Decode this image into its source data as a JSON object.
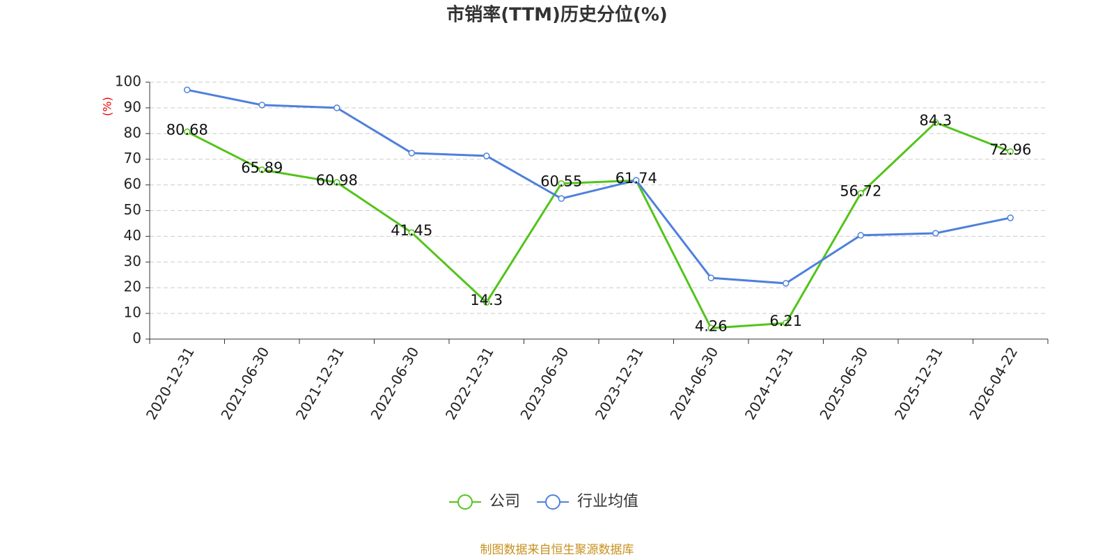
{
  "chart_data": {
    "type": "line",
    "title": "市销率(TTM)历史分位(%)",
    "y_label": "(%)",
    "categories": [
      "2020-12-31",
      "2021-06-30",
      "2021-12-31",
      "2022-06-30",
      "2022-12-31",
      "2023-06-30",
      "2023-12-31",
      "2024-06-30",
      "2024-12-31",
      "2025-06-30",
      "2025-12-31",
      "2026-04-22"
    ],
    "series": [
      {
        "name": "公司",
        "color": "#52c41a",
        "values": [
          80.68,
          65.89,
          60.98,
          41.45,
          14.3,
          60.55,
          61.74,
          4.26,
          6.21,
          56.72,
          84.3,
          72.96
        ]
      },
      {
        "name": "行业均值",
        "color": "#4e80dc",
        "values": [
          97.0,
          91.1,
          90.0,
          72.4,
          71.3,
          54.7,
          61.8,
          23.8,
          21.7,
          40.4,
          41.2,
          47.2
        ]
      }
    ],
    "ylim": [
      0,
      100
    ],
    "yticks": [
      0,
      10,
      20,
      30,
      40,
      50,
      60,
      70,
      80,
      90,
      100
    ],
    "grid": true,
    "source": "制图数据来自恒生聚源数据库"
  }
}
